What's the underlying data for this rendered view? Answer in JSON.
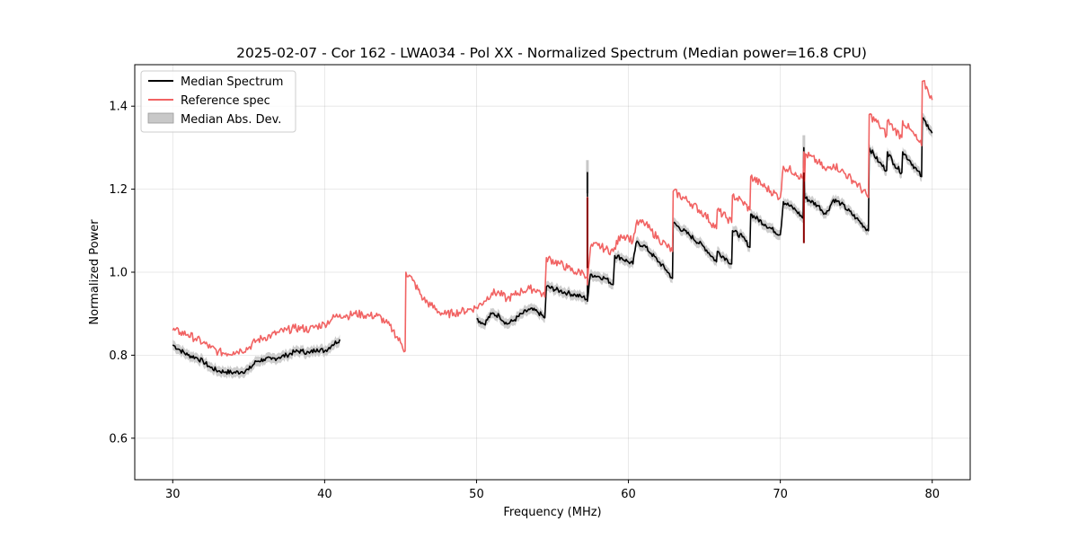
{
  "chart_data": {
    "type": "line",
    "title": "2025-02-07 - Cor 162 - LWA034 - Pol XX - Normalized Spectrum (Median power=16.8 CPU)",
    "xlabel": "Frequency (MHz)",
    "ylabel": "Normalized Power",
    "xlim": [
      27.5,
      82.5
    ],
    "ylim": [
      0.5,
      1.5
    ],
    "xticks": [
      30,
      40,
      50,
      60,
      70,
      80
    ],
    "yticks": [
      0.6,
      0.8,
      1.0,
      1.2,
      1.4
    ],
    "xtick_labels": [
      "30",
      "40",
      "50",
      "60",
      "70",
      "80"
    ],
    "ytick_labels": [
      "0.6",
      "0.8",
      "1.0",
      "1.2",
      "1.4"
    ],
    "grid": true,
    "legend_position": "top-left",
    "legend": [
      "Median Spectrum",
      "Reference spec",
      "Median Abs. Dev."
    ],
    "colors": {
      "median": "#000000",
      "reference": "#f16363",
      "mad": "#c8c8c8",
      "overlap": "#8b0000"
    },
    "series": [
      {
        "name": "Reference spec",
        "segments": [
          [
            [
              30,
              0.86
            ],
            [
              30.5,
              0.855
            ],
            [
              31,
              0.85
            ],
            [
              31.5,
              0.84
            ],
            [
              32,
              0.83
            ],
            [
              32.5,
              0.818
            ],
            [
              33,
              0.808
            ],
            [
              33.5,
              0.805
            ],
            [
              34,
              0.808
            ],
            [
              34.5,
              0.812
            ],
            [
              35,
              0.818
            ],
            [
              35.5,
              0.835
            ],
            [
              36,
              0.842
            ],
            [
              36.5,
              0.848
            ],
            [
              37,
              0.855
            ],
            [
              37.5,
              0.86
            ],
            [
              38,
              0.865
            ],
            [
              38.5,
              0.865
            ],
            [
              39,
              0.862
            ],
            [
              39.5,
              0.87
            ],
            [
              40,
              0.875
            ],
            [
              40.5,
              0.888
            ],
            [
              41,
              0.898
            ],
            [
              41.5,
              0.895
            ],
            [
              42,
              0.9
            ],
            [
              42.5,
              0.898
            ],
            [
              43,
              0.895
            ],
            [
              43.5,
              0.895
            ],
            [
              44,
              0.88
            ],
            [
              44.5,
              0.86
            ],
            [
              45,
              0.83
            ],
            [
              45.3,
              0.81
            ],
            [
              45.35,
              1.0
            ],
            [
              45.8,
              0.98
            ],
            [
              46.5,
              0.935
            ],
            [
              47,
              0.92
            ],
            [
              47.5,
              0.905
            ],
            [
              48,
              0.898
            ],
            [
              48.5,
              0.902
            ],
            [
              49,
              0.905
            ],
            [
              49.5,
              0.91
            ],
            [
              50,
              0.915
            ],
            [
              50.5,
              0.93
            ],
            [
              51,
              0.95
            ],
            [
              51.5,
              0.95
            ],
            [
              52,
              0.935
            ],
            [
              52.5,
              0.945
            ],
            [
              53,
              0.955
            ],
            [
              53.5,
              0.96
            ],
            [
              54,
              0.958
            ],
            [
              54.5,
              0.94
            ],
            [
              54.6,
              1.035
            ],
            [
              55.5,
              1.02
            ],
            [
              56,
              1.01
            ],
            [
              56.5,
              1.0
            ],
            [
              57,
              1.0
            ],
            [
              57.3,
              0.99
            ],
            [
              57.3,
              1.18
            ],
            [
              57.3,
              0.97
            ],
            [
              57.5,
              1.06
            ],
            [
              58,
              1.065
            ],
            [
              58.5,
              1.055
            ],
            [
              59,
              1.05
            ],
            [
              59.5,
              1.09
            ],
            [
              60,
              1.085
            ],
            [
              60.3,
              1.075
            ],
            [
              60.5,
              1.115
            ],
            [
              61,
              1.12
            ],
            [
              61.5,
              1.1
            ],
            [
              62,
              1.08
            ],
            [
              62.5,
              1.065
            ],
            [
              62.9,
              1.05
            ],
            [
              62.95,
              1.195
            ],
            [
              64,
              1.17
            ],
            [
              65,
              1.14
            ],
            [
              65.8,
              1.105
            ],
            [
              65.85,
              1.15
            ],
            [
              66.5,
              1.13
            ],
            [
              66.8,
              1.12
            ],
            [
              66.85,
              1.185
            ],
            [
              67.5,
              1.17
            ],
            [
              68,
              1.15
            ],
            [
              68.05,
              1.23
            ],
            [
              69,
              1.205
            ],
            [
              70,
              1.18
            ],
            [
              70.2,
              1.255
            ],
            [
              71,
              1.24
            ],
            [
              71.5,
              1.225
            ],
            [
              71.55,
              1.29
            ],
            [
              71.6,
              1.22
            ],
            [
              71.65,
              1.285
            ],
            [
              72.5,
              1.265
            ],
            [
              73,
              1.245
            ],
            [
              73.5,
              1.26
            ],
            [
              74,
              1.245
            ],
            [
              75,
              1.215
            ],
            [
              75.8,
              1.18
            ],
            [
              75.85,
              1.38
            ],
            [
              76.5,
              1.355
            ],
            [
              77,
              1.33
            ],
            [
              77.05,
              1.365
            ],
            [
              77.5,
              1.345
            ],
            [
              78,
              1.325
            ],
            [
              78.05,
              1.365
            ],
            [
              78.5,
              1.345
            ],
            [
              79,
              1.32
            ],
            [
              79.3,
              1.305
            ],
            [
              79.35,
              1.46
            ],
            [
              79.7,
              1.44
            ],
            [
              80,
              1.415
            ]
          ]
        ]
      },
      {
        "name": "Median Spectrum",
        "segments": [
          [
            [
              30,
              0.825
            ],
            [
              30.5,
              0.812
            ],
            [
              31,
              0.8
            ],
            [
              31.5,
              0.795
            ],
            [
              32,
              0.785
            ],
            [
              32.5,
              0.77
            ],
            [
              33,
              0.762
            ],
            [
              33.5,
              0.76
            ],
            [
              34,
              0.758
            ],
            [
              34.5,
              0.76
            ],
            [
              35,
              0.765
            ],
            [
              35.5,
              0.785
            ],
            [
              36,
              0.79
            ],
            [
              36.5,
              0.79
            ],
            [
              37,
              0.795
            ],
            [
              37.5,
              0.8
            ],
            [
              38,
              0.808
            ],
            [
              38.5,
              0.81
            ],
            [
              39,
              0.805
            ],
            [
              39.5,
              0.815
            ],
            [
              40,
              0.81
            ],
            [
              40.5,
              0.825
            ],
            [
              41,
              0.838
            ]
          ],
          [
            [
              50,
              0.888
            ],
            [
              50.5,
              0.875
            ],
            [
              51,
              0.9
            ],
            [
              51.5,
              0.895
            ],
            [
              52,
              0.875
            ],
            [
              52.5,
              0.885
            ],
            [
              53,
              0.9
            ],
            [
              53.5,
              0.91
            ],
            [
              54,
              0.905
            ],
            [
              54.5,
              0.89
            ],
            [
              54.6,
              0.965
            ],
            [
              55.5,
              0.955
            ],
            [
              56,
              0.95
            ],
            [
              56.5,
              0.945
            ],
            [
              57,
              0.94
            ],
            [
              57.3,
              0.935
            ],
            [
              57.3,
              1.24
            ],
            [
              57.3,
              0.93
            ],
            [
              57.5,
              0.995
            ],
            [
              58,
              0.99
            ],
            [
              58.5,
              0.985
            ],
            [
              59,
              0.97
            ],
            [
              59.1,
              1.04
            ],
            [
              59.5,
              1.035
            ],
            [
              60,
              1.025
            ],
            [
              60.3,
              1.02
            ],
            [
              60.5,
              1.07
            ],
            [
              61,
              1.065
            ],
            [
              61.5,
              1.045
            ],
            [
              62,
              1.025
            ],
            [
              62.5,
              1.005
            ],
            [
              62.9,
              0.985
            ],
            [
              62.95,
              1.118
            ],
            [
              64,
              1.09
            ],
            [
              65,
              1.06
            ],
            [
              65.8,
              1.025
            ],
            [
              65.85,
              1.05
            ],
            [
              66.5,
              1.03
            ],
            [
              66.8,
              1.02
            ],
            [
              66.85,
              1.1
            ],
            [
              67.5,
              1.085
            ],
            [
              68,
              1.06
            ],
            [
              68.05,
              1.14
            ],
            [
              69,
              1.115
            ],
            [
              70,
              1.09
            ],
            [
              70.2,
              1.17
            ],
            [
              71,
              1.15
            ],
            [
              71.5,
              1.13
            ],
            [
              71.55,
              1.3
            ],
            [
              71.6,
              1.18
            ],
            [
              72.5,
              1.16
            ],
            [
              73,
              1.14
            ],
            [
              73.5,
              1.175
            ],
            [
              74,
              1.165
            ],
            [
              75,
              1.13
            ],
            [
              75.8,
              1.1
            ],
            [
              75.85,
              1.3
            ],
            [
              76.5,
              1.265
            ],
            [
              77,
              1.245
            ],
            [
              77.05,
              1.29
            ],
            [
              77.5,
              1.26
            ],
            [
              78,
              1.24
            ],
            [
              78.05,
              1.29
            ],
            [
              78.5,
              1.27
            ],
            [
              79,
              1.245
            ],
            [
              79.3,
              1.23
            ],
            [
              79.35,
              1.37
            ],
            [
              79.7,
              1.355
            ],
            [
              80,
              1.335
            ]
          ]
        ]
      },
      {
        "name": "Median Abs. Dev.",
        "band_halfwidth": 0.012,
        "spikes": [
          {
            "x": 57.3,
            "y": 1.27
          },
          {
            "x": 71.55,
            "y": 1.33
          }
        ]
      }
    ]
  }
}
